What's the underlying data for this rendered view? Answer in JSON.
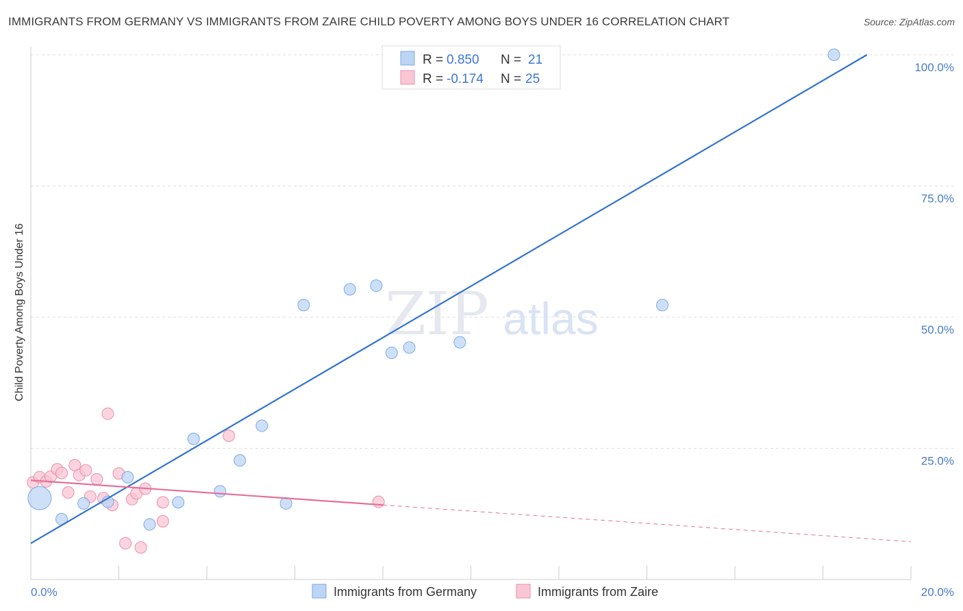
{
  "title": "IMMIGRANTS FROM GERMANY VS IMMIGRANTS FROM ZAIRE CHILD POVERTY AMONG BOYS UNDER 16 CORRELATION CHART",
  "source": "Source: ZipAtlas.com",
  "watermark": {
    "zip": "ZIP",
    "atlas": "atlas"
  },
  "colors": {
    "germany_fill": "#bcd5f5",
    "germany_stroke": "#7ea9e0",
    "germany_line": "#2f72d0",
    "zaire_fill": "#f9c6d4",
    "zaire_stroke": "#ea8fab",
    "zaire_line": "#e4709a",
    "axis_text": "#4a7cc7",
    "grid": "#dddddd"
  },
  "legend": {
    "rows": [
      {
        "r_label": "R =",
        "r_value": "0.850",
        "n_label": "N =",
        "n_value": "21"
      },
      {
        "r_label": "R =",
        "r_value": "-0.174",
        "n_label": "N =",
        "n_value": "25"
      }
    ]
  },
  "chart_data": {
    "type": "scatter",
    "title": "IMMIGRANTS FROM GERMANY VS IMMIGRANTS FROM ZAIRE CHILD POVERTY AMONG BOYS UNDER 16 CORRELATION CHART",
    "xlabel": "",
    "ylabel": "Child Poverty Among Boys Under 16",
    "xlim": [
      0,
      20
    ],
    "ylim": [
      0,
      100
    ],
    "x_tick_labels": [
      "0.0%",
      "20.0%"
    ],
    "y_ticks": [
      25,
      50,
      75,
      100
    ],
    "y_tick_labels": [
      "25.0%",
      "50.0%",
      "75.0%",
      "100.0%"
    ],
    "grid": true,
    "legend_position": "top-center",
    "series": [
      {
        "name": "Immigrants from Germany",
        "r": 0.85,
        "n": 21,
        "points": [
          {
            "x": 0.2,
            "y": 15.5,
            "size": "large"
          },
          {
            "x": 0.7,
            "y": 11.5
          },
          {
            "x": 1.2,
            "y": 14.5
          },
          {
            "x": 1.75,
            "y": 14.8
          },
          {
            "x": 2.2,
            "y": 19.5
          },
          {
            "x": 2.7,
            "y": 10.5
          },
          {
            "x": 3.35,
            "y": 14.7
          },
          {
            "x": 3.7,
            "y": 26.8
          },
          {
            "x": 4.3,
            "y": 16.8
          },
          {
            "x": 4.75,
            "y": 22.7
          },
          {
            "x": 5.25,
            "y": 29.3
          },
          {
            "x": 5.8,
            "y": 14.5
          },
          {
            "x": 6.2,
            "y": 52.3
          },
          {
            "x": 7.25,
            "y": 55.3
          },
          {
            "x": 7.85,
            "y": 56.0
          },
          {
            "x": 8.2,
            "y": 43.2
          },
          {
            "x": 8.6,
            "y": 44.2
          },
          {
            "x": 9.75,
            "y": 45.2
          },
          {
            "x": 10.4,
            "y": 100.0
          },
          {
            "x": 14.35,
            "y": 52.3
          },
          {
            "x": 18.25,
            "y": 100.0
          }
        ],
        "trend": {
          "x": [
            0,
            19.0
          ],
          "y": [
            6.9,
            100.0
          ]
        }
      },
      {
        "name": "Immigrants from Zaire",
        "r": -0.174,
        "n": 25,
        "points": [
          {
            "x": 0.05,
            "y": 18.5
          },
          {
            "x": 0.2,
            "y": 19.5
          },
          {
            "x": 0.35,
            "y": 18.7
          },
          {
            "x": 0.45,
            "y": 19.6
          },
          {
            "x": 0.6,
            "y": 21.0
          },
          {
            "x": 0.7,
            "y": 20.3
          },
          {
            "x": 0.85,
            "y": 16.6
          },
          {
            "x": 1.0,
            "y": 21.8
          },
          {
            "x": 1.1,
            "y": 19.9
          },
          {
            "x": 1.25,
            "y": 20.8
          },
          {
            "x": 1.35,
            "y": 15.8
          },
          {
            "x": 1.5,
            "y": 19.1
          },
          {
            "x": 1.65,
            "y": 15.5
          },
          {
            "x": 1.75,
            "y": 31.6
          },
          {
            "x": 1.85,
            "y": 14.2
          },
          {
            "x": 2.0,
            "y": 20.2
          },
          {
            "x": 2.15,
            "y": 6.9
          },
          {
            "x": 2.3,
            "y": 15.3
          },
          {
            "x": 2.4,
            "y": 16.4
          },
          {
            "x": 2.5,
            "y": 6.1
          },
          {
            "x": 2.6,
            "y": 17.3
          },
          {
            "x": 3.0,
            "y": 11.1
          },
          {
            "x": 3.0,
            "y": 14.7
          },
          {
            "x": 4.5,
            "y": 27.4
          },
          {
            "x": 7.9,
            "y": 14.8
          }
        ],
        "trend": {
          "x": [
            0,
            8.0
          ],
          "y": [
            18.9,
            14.2
          ]
        },
        "trend_extension": {
          "x": [
            8.0,
            20.0
          ],
          "y": [
            14.2,
            7.2
          ]
        }
      }
    ]
  }
}
